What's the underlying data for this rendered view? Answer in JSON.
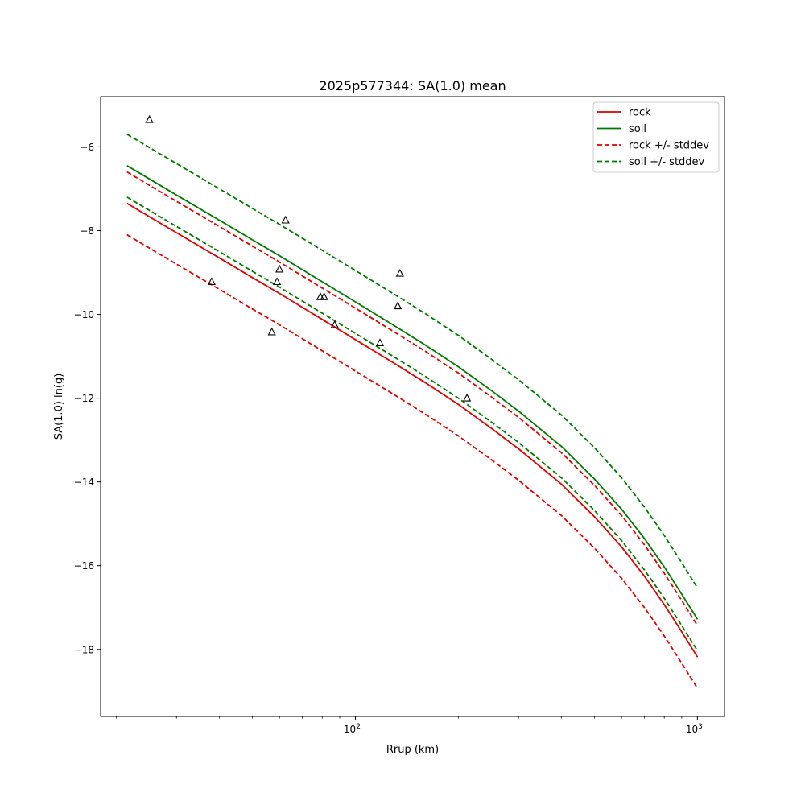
{
  "chart_data": {
    "type": "line",
    "title": "2025p577344: SA(1.0) mean",
    "xlabel": "Rrup (km)",
    "ylabel": "SA(1.0) ln(g)",
    "xscale": "log",
    "xlim": [
      18,
      1200
    ],
    "ylim": [
      -19.6,
      -4.8
    ],
    "grid": false,
    "legend_position": "top-right",
    "x_ticks": [
      {
        "value": 100,
        "label": "10",
        "exponent": "2"
      },
      {
        "value": 1000,
        "label": "10",
        "exponent": "3"
      }
    ],
    "x_minor_ticks": [
      20,
      30,
      40,
      50,
      60,
      70,
      80,
      90,
      200,
      300,
      400,
      500,
      600,
      700,
      800,
      900
    ],
    "y_ticks": [
      {
        "value": -6,
        "label": "−6"
      },
      {
        "value": -8,
        "label": "−8"
      },
      {
        "value": -10,
        "label": "−10"
      },
      {
        "value": -12,
        "label": "−12"
      },
      {
        "value": -14,
        "label": "−14"
      },
      {
        "value": -16,
        "label": "−16"
      },
      {
        "value": -18,
        "label": "−18"
      }
    ],
    "curve_x": [
      21.5,
      30,
      40,
      50,
      60,
      80,
      100,
      130,
      160,
      200,
      250,
      300,
      400,
      500,
      600,
      700,
      800,
      900,
      1000
    ],
    "series": [
      {
        "name": "rock",
        "color": "#dd0000",
        "dash": "solid",
        "y": [
          -7.35,
          -8.05,
          -8.65,
          -9.12,
          -9.5,
          -10.12,
          -10.6,
          -11.17,
          -11.63,
          -12.15,
          -12.72,
          -13.21,
          -14.05,
          -14.83,
          -15.55,
          -16.25,
          -16.93,
          -17.58,
          -18.18
        ]
      },
      {
        "name": "soil",
        "color": "#007700",
        "dash": "solid",
        "y": [
          -6.45,
          -7.15,
          -7.75,
          -8.22,
          -8.6,
          -9.22,
          -9.7,
          -10.27,
          -10.73,
          -11.25,
          -11.82,
          -12.31,
          -13.15,
          -13.93,
          -14.65,
          -15.35,
          -16.03,
          -16.68,
          -17.28
        ]
      },
      {
        "name": "rock +/- stddev",
        "color": "#dd0000",
        "dash": "dashed",
        "bounds": [
          {
            "y": [
              -6.6,
              -7.3,
              -7.9,
              -8.37,
              -8.75,
              -9.37,
              -9.85,
              -10.42,
              -10.88,
              -11.4,
              -11.97,
              -12.46,
              -13.3,
              -14.08,
              -14.8,
              -15.5,
              -16.18,
              -16.83,
              -17.43
            ]
          },
          {
            "y": [
              -8.1,
              -8.8,
              -9.4,
              -9.87,
              -10.25,
              -10.87,
              -11.35,
              -11.92,
              -12.38,
              -12.9,
              -13.47,
              -13.96,
              -14.8,
              -15.58,
              -16.3,
              -17.0,
              -17.68,
              -18.33,
              -18.93
            ]
          }
        ]
      },
      {
        "name": "soil +/- stddev",
        "color": "#007700",
        "dash": "dashed",
        "bounds": [
          {
            "y": [
              -5.7,
              -6.4,
              -7.0,
              -7.47,
              -7.85,
              -8.47,
              -8.95,
              -9.52,
              -9.98,
              -10.5,
              -11.07,
              -11.56,
              -12.4,
              -13.18,
              -13.9,
              -14.6,
              -15.28,
              -15.93,
              -16.53
            ]
          },
          {
            "y": [
              -7.2,
              -7.9,
              -8.5,
              -8.97,
              -9.35,
              -9.97,
              -10.45,
              -11.02,
              -11.48,
              -12.0,
              -12.57,
              -13.06,
              -13.9,
              -14.68,
              -15.4,
              -16.1,
              -16.78,
              -17.43,
              -18.03
            ]
          }
        ]
      }
    ],
    "observations": [
      {
        "x": 25,
        "y": -5.35
      },
      {
        "x": 38,
        "y": -9.22
      },
      {
        "x": 57,
        "y": -10.42
      },
      {
        "x": 59,
        "y": -9.22
      },
      {
        "x": 60,
        "y": -8.92
      },
      {
        "x": 62.5,
        "y": -7.75
      },
      {
        "x": 79,
        "y": -9.58
      },
      {
        "x": 81,
        "y": -9.58
      },
      {
        "x": 87,
        "y": -10.25
      },
      {
        "x": 118,
        "y": -10.68
      },
      {
        "x": 133,
        "y": -9.8
      },
      {
        "x": 135,
        "y": -9.02
      },
      {
        "x": 212,
        "y": -12.0
      }
    ]
  }
}
